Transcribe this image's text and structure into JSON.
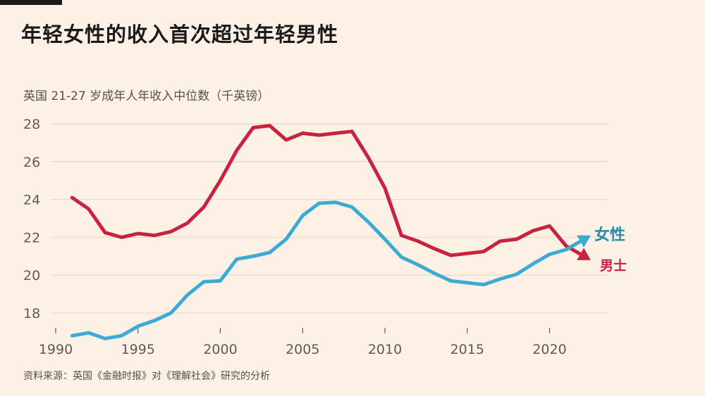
{
  "header": {
    "title": "年轻女性的收入首次超过年轻男性",
    "subtitle": "英国 21-27 岁成年人年收入中位数（千英镑）"
  },
  "footer": {
    "source": "资料来源：英国《金融时报》对《理解社会》研究的分析"
  },
  "colors": {
    "background": "#FDF1E6",
    "women": "#3DAAD3",
    "women_label": "#2A8AA8",
    "men": "#C8223F",
    "men_label": "#C8223F"
  },
  "chart_data": {
    "type": "line",
    "title": "年轻女性的收入首次超过年轻男性",
    "subtitle": "英国 21-27 岁成年人年收入中位数（千英镑）",
    "xlabel": "",
    "ylabel": "",
    "xlim": [
      1990,
      2023
    ],
    "ylim": [
      16.8,
      28
    ],
    "grid": true,
    "x_ticks": [
      1990,
      1995,
      2000,
      2005,
      2010,
      2015,
      2020
    ],
    "x_tick_labels": [
      "1990",
      "1995",
      "2000",
      "2005",
      "2010",
      "2015",
      "2020"
    ],
    "y_ticks": [
      18,
      20,
      22,
      24,
      26,
      28
    ],
    "y_tick_labels": [
      "18",
      "20",
      "22",
      "24",
      "26",
      "28"
    ],
    "x": [
      1991,
      1992,
      1993,
      1994,
      1995,
      1996,
      1997,
      1998,
      1999,
      2000,
      2001,
      2002,
      2003,
      2004,
      2005,
      2006,
      2007,
      2008,
      2009,
      2010,
      2011,
      2012,
      2013,
      2014,
      2015,
      2016,
      2017,
      2018,
      2019,
      2020,
      2021
    ],
    "series": [
      {
        "name": "男士",
        "key": "men",
        "values": [
          24.1,
          23.5,
          22.25,
          22.0,
          22.2,
          22.1,
          22.3,
          22.75,
          23.6,
          25.0,
          26.6,
          27.8,
          27.9,
          27.15,
          27.5,
          27.4,
          27.5,
          27.6,
          26.2,
          24.6,
          22.1,
          21.8,
          21.4,
          21.05,
          21.15,
          21.25,
          21.8,
          21.9,
          22.35,
          22.6,
          21.55
        ],
        "arrow_to": [
          2022.5,
          20.8
        ]
      },
      {
        "name": "女性",
        "key": "women",
        "values": [
          16.8,
          16.95,
          16.65,
          16.8,
          17.3,
          17.6,
          18.0,
          18.95,
          19.65,
          19.7,
          20.85,
          21.0,
          21.2,
          21.9,
          23.15,
          23.8,
          23.85,
          23.6,
          22.8,
          21.9,
          20.95,
          20.55,
          20.1,
          19.7,
          19.6,
          19.5,
          19.8,
          20.05,
          20.6,
          21.1,
          21.35
        ],
        "arrow_to": [
          2022.5,
          22.1
        ]
      }
    ],
    "legend": "direct-labels-right",
    "annotations": [
      "女性",
      "男士"
    ]
  }
}
